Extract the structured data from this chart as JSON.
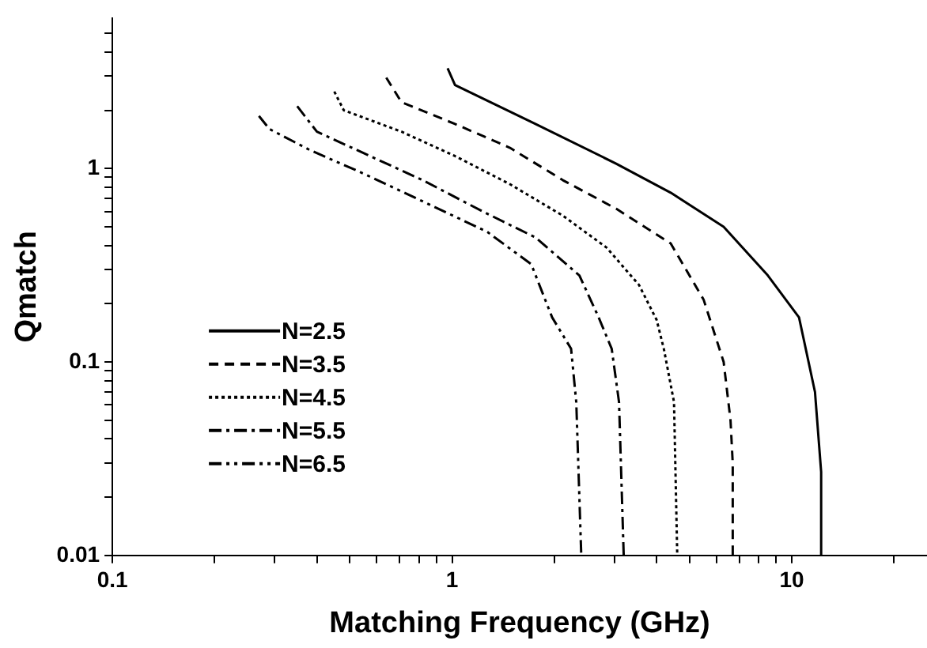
{
  "chart_data": {
    "type": "line",
    "xlabel": "Matching Frequency (GHz)",
    "ylabel": "Qmatch",
    "log": "xy",
    "xlim": [
      0.1,
      25
    ],
    "ylim": [
      0.01,
      6
    ],
    "xticks": [
      0.1,
      {
        "value": 0.2,
        "label": null
      },
      {
        "value": 0.3,
        "label": null
      },
      {
        "value": 0.4,
        "label": null
      },
      {
        "value": 0.5,
        "label": null
      },
      {
        "value": 0.6,
        "label": null
      },
      {
        "value": 0.7,
        "label": null
      },
      {
        "value": 0.8,
        "label": null
      },
      {
        "value": 0.9,
        "label": null
      },
      1,
      {
        "value": 2,
        "label": null
      },
      {
        "value": 3,
        "label": null
      },
      {
        "value": 4,
        "label": null
      },
      {
        "value": 5,
        "label": null
      },
      {
        "value": 6,
        "label": null
      },
      {
        "value": 7,
        "label": null
      },
      {
        "value": 8,
        "label": null
      },
      {
        "value": 9,
        "label": null
      },
      10,
      {
        "value": 20,
        "label": null
      }
    ],
    "yticks": [
      0.01,
      {
        "value": 0.02,
        "label": null
      },
      {
        "value": 0.03,
        "label": null
      },
      {
        "value": 0.04,
        "label": null
      },
      {
        "value": 0.05,
        "label": null
      },
      {
        "value": 0.06,
        "label": null
      },
      {
        "value": 0.07,
        "label": null
      },
      {
        "value": 0.08,
        "label": null
      },
      {
        "value": 0.09,
        "label": null
      },
      0.1,
      {
        "value": 0.2,
        "label": null
      },
      {
        "value": 0.3,
        "label": null
      },
      {
        "value": 0.4,
        "label": null
      },
      {
        "value": 0.5,
        "label": null
      },
      {
        "value": 0.6,
        "label": null
      },
      {
        "value": 0.7,
        "label": null
      },
      {
        "value": 0.8,
        "label": null
      },
      {
        "value": 0.9,
        "label": null
      },
      1,
      {
        "value": 2,
        "label": null
      },
      {
        "value": 3,
        "label": null
      },
      {
        "value": 4,
        "label": null
      },
      {
        "value": 5,
        "label": null
      }
    ],
    "grid": false,
    "legend": "left",
    "marker": "none",
    "series": [
      {
        "name": "N=2.5",
        "color": "#000000",
        "line_style": "solid",
        "x": [
          0.97,
          1.02,
          1.76,
          3.04,
          4.4,
          6.3,
          8.5,
          10.5,
          11.7,
          12.2,
          12.2
        ],
        "values": [
          3.3,
          2.7,
          1.7,
          1.06,
          0.75,
          0.5,
          0.28,
          0.17,
          0.07,
          0.027,
          0.01
        ]
      },
      {
        "name": "N=3.5",
        "color": "#000000",
        "line_style": "dashed",
        "x": [
          0.64,
          0.71,
          1.02,
          1.48,
          2.12,
          3.04,
          4.4,
          5.5,
          6.3,
          6.6,
          6.7,
          6.7
        ],
        "values": [
          2.95,
          2.2,
          1.7,
          1.28,
          0.87,
          0.62,
          0.41,
          0.21,
          0.1,
          0.05,
          0.03,
          0.01
        ]
      },
      {
        "name": "N=4.5",
        "color": "#000000",
        "line_style": "dotted",
        "x": [
          0.45,
          0.48,
          0.71,
          1.02,
          1.48,
          2.12,
          2.85,
          3.55,
          4.0,
          4.2,
          4.5,
          4.6
        ],
        "values": [
          2.5,
          2.0,
          1.55,
          1.16,
          0.83,
          0.57,
          0.39,
          0.25,
          0.165,
          0.117,
          0.062,
          0.01
        ]
      },
      {
        "name": "N=5.5",
        "color": "#000000",
        "line_style": "dashdot",
        "x": [
          0.35,
          0.4,
          0.55,
          0.82,
          1.23,
          1.76,
          2.37,
          2.7,
          2.95,
          3.1,
          3.2
        ],
        "values": [
          2.1,
          1.55,
          1.2,
          0.87,
          0.6,
          0.44,
          0.28,
          0.17,
          0.117,
          0.062,
          0.01
        ]
      },
      {
        "name": "N=6.5",
        "color": "#000000",
        "line_style": "dashdotdot",
        "x": [
          0.27,
          0.29,
          0.38,
          0.55,
          0.86,
          1.27,
          1.71,
          1.97,
          2.24,
          2.32,
          2.4
        ],
        "values": [
          1.87,
          1.6,
          1.25,
          0.94,
          0.65,
          0.47,
          0.32,
          0.17,
          0.117,
          0.062,
          0.01
        ]
      }
    ]
  }
}
